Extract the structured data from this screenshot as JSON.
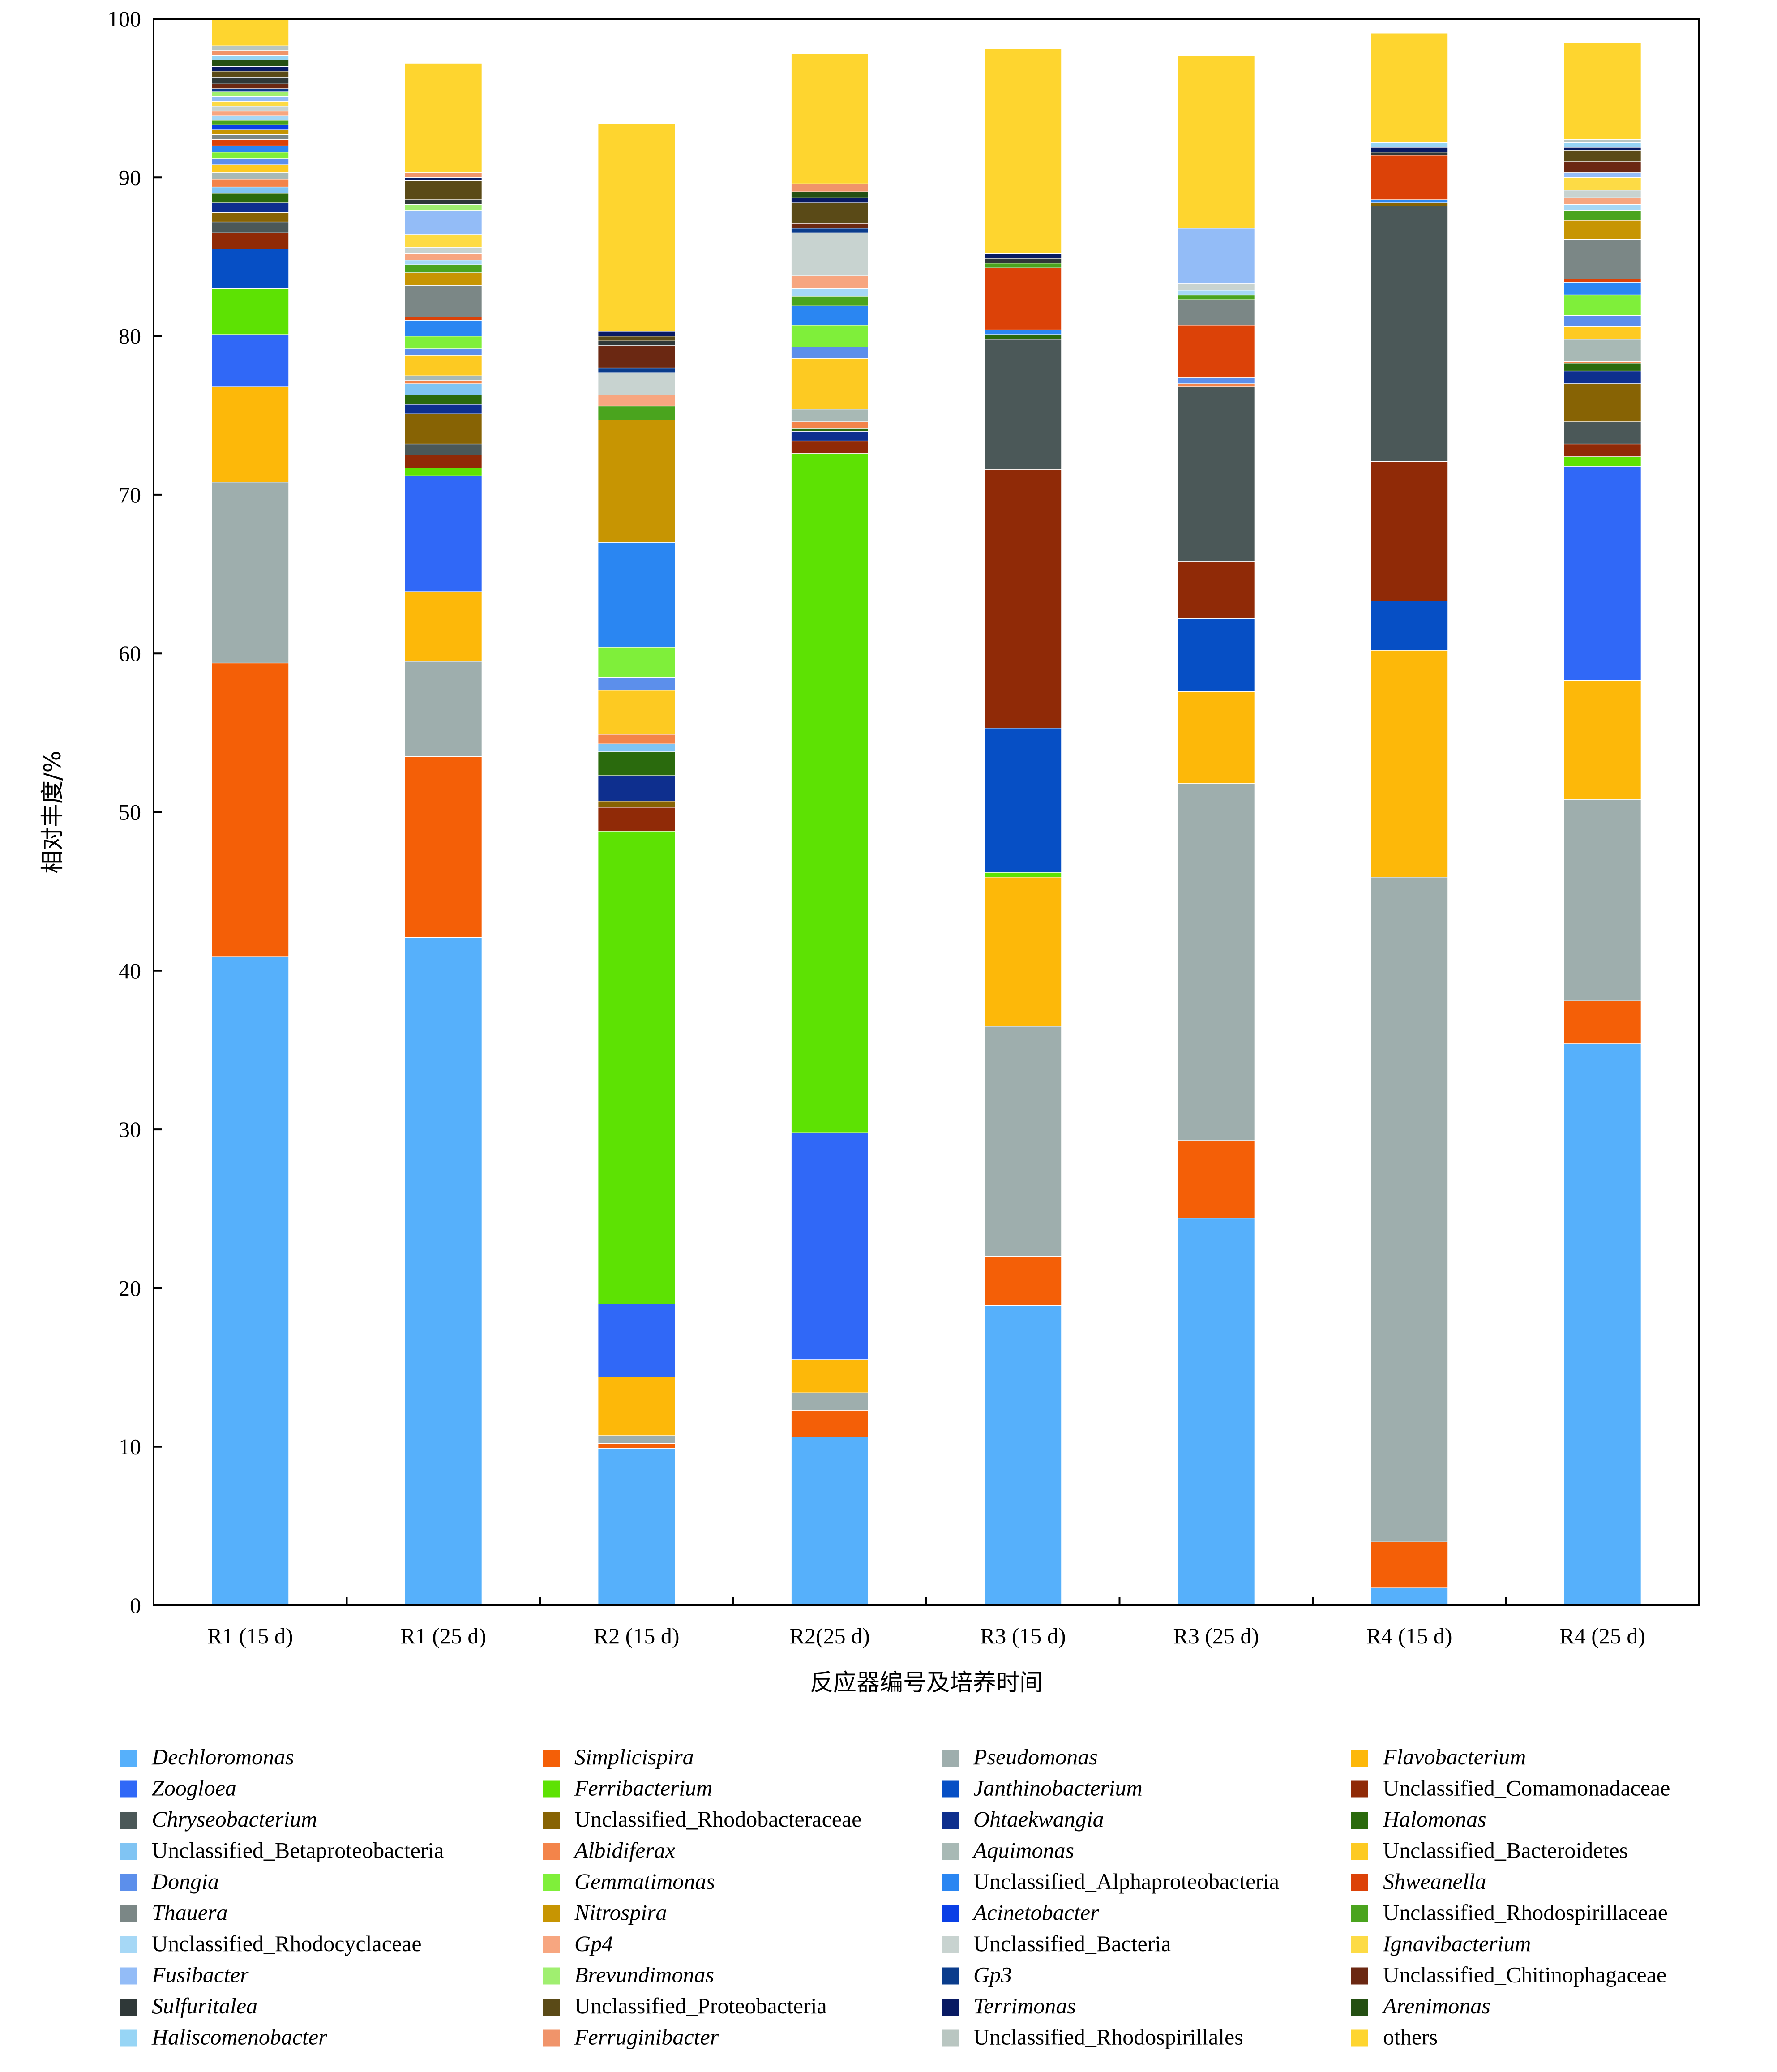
{
  "chart_data": {
    "type": "bar",
    "stacked": true,
    "xlabel": "反应器编号及培养时间",
    "ylabel": "相对丰度/%",
    "ylim": [
      0,
      100
    ],
    "yticks": [
      0,
      10,
      20,
      30,
      40,
      50,
      60,
      70,
      80,
      90,
      100
    ],
    "grid": false,
    "legend_position": "bottom",
    "categories": [
      "R1 (15 d)",
      "R1 (25 d)",
      "R2 (15 d)",
      "R2(25 d)",
      "R3 (15 d)",
      "R3 (25 d)",
      "R4 (15 d)",
      "R4 (25 d)"
    ],
    "series": [
      {
        "name": "Dechloromonas",
        "italic": true,
        "color": "#56B0FB",
        "values": [
          40.9,
          42.1,
          9.9,
          10.6,
          18.9,
          24.4,
          1.1,
          35.4
        ]
      },
      {
        "name": "Simplicispira",
        "italic": true,
        "color": "#F45F07",
        "values": [
          18.5,
          11.4,
          0.3,
          1.7,
          3.1,
          4.9,
          2.9,
          2.7
        ]
      },
      {
        "name": "Pseudomonas",
        "italic": true,
        "color": "#9EAEAD",
        "values": [
          11.4,
          6.0,
          0.5,
          1.1,
          14.5,
          22.5,
          41.9,
          12.7
        ]
      },
      {
        "name": "Flavobacterium",
        "italic": true,
        "color": "#FDB809",
        "values": [
          6.0,
          4.4,
          3.7,
          2.1,
          9.4,
          5.8,
          14.3,
          7.5
        ]
      },
      {
        "name": "Zoogloea",
        "italic": true,
        "color": "#3068F7",
        "values": [
          3.3,
          7.3,
          4.6,
          14.3,
          0.0,
          0.0,
          0.0,
          13.5
        ]
      },
      {
        "name": "Ferribacterium",
        "italic": true,
        "color": "#5DE203",
        "values": [
          2.9,
          0.5,
          29.8,
          42.8,
          0.3,
          0.0,
          0.0,
          0.6
        ]
      },
      {
        "name": "Janthinobacterium",
        "italic": true,
        "color": "#064FC5",
        "values": [
          2.5,
          0.0,
          0.0,
          0.0,
          9.1,
          4.6,
          3.1,
          0.0
        ]
      },
      {
        "name": "Unclassified_Comamonadaceae",
        "italic": false,
        "color": "#902A07",
        "values": [
          1.0,
          0.8,
          1.5,
          0.8,
          16.3,
          3.6,
          8.8,
          0.8
        ]
      },
      {
        "name": "Chryseobacterium",
        "italic": true,
        "color": "#4B5858",
        "values": [
          0.7,
          0.7,
          0.0,
          0.0,
          8.2,
          11.0,
          16.1,
          1.4
        ]
      },
      {
        "name": "Unclassified_Rhodobacteraceae",
        "italic": false,
        "color": "#876304",
        "values": [
          0.6,
          1.9,
          0.4,
          0.0,
          0.0,
          0.0,
          0.2,
          2.4
        ]
      },
      {
        "name": "Ohtaekwangia",
        "italic": true,
        "color": "#0E2F8E",
        "values": [
          0.6,
          0.6,
          1.6,
          0.6,
          0.0,
          0.0,
          0.0,
          0.8
        ]
      },
      {
        "name": "Halomonas",
        "italic": true,
        "color": "#2A6A0D",
        "values": [
          0.6,
          0.6,
          1.5,
          0.2,
          0.3,
          0.0,
          0.0,
          0.5
        ]
      },
      {
        "name": "Unclassified_Betaproteobacteria",
        "italic": false,
        "color": "#80C4F3",
        "values": [
          0.4,
          0.7,
          0.5,
          0.0,
          0.0,
          0.0,
          0.0,
          0.0
        ]
      },
      {
        "name": "Albidiferax",
        "italic": true,
        "color": "#F3844A",
        "values": [
          0.5,
          0.2,
          0.6,
          0.4,
          0.0,
          0.2,
          0.0,
          0.1
        ]
      },
      {
        "name": "Aquimonas",
        "italic": true,
        "color": "#A8B9B5",
        "values": [
          0.4,
          0.3,
          0.0,
          0.8,
          0.0,
          0.0,
          0.0,
          1.4
        ]
      },
      {
        "name": "Unclassified_Bacteroidetes",
        "italic": false,
        "color": "#FDCA22",
        "values": [
          0.5,
          1.3,
          2.8,
          3.2,
          0.0,
          0.0,
          0.0,
          0.8
        ]
      },
      {
        "name": "Dongia",
        "italic": true,
        "color": "#5C8FEB",
        "values": [
          0.4,
          0.4,
          0.8,
          0.7,
          0.0,
          0.4,
          0.0,
          0.7
        ]
      },
      {
        "name": "Gemmatimonas",
        "italic": true,
        "color": "#7FEF3A",
        "values": [
          0.4,
          0.8,
          1.9,
          1.4,
          0.0,
          0.0,
          0.0,
          1.3
        ]
      },
      {
        "name": "Unclassified_Alphaproteobacteria",
        "italic": false,
        "color": "#2A86F2",
        "values": [
          0.4,
          1.0,
          6.6,
          1.2,
          0.3,
          0.0,
          0.2,
          0.8
        ]
      },
      {
        "name": "Shweanella",
        "italic": true,
        "color": "#DC4208",
        "values": [
          0.4,
          0.2,
          0.0,
          0.0,
          3.9,
          3.3,
          2.8,
          0.2
        ]
      },
      {
        "name": "Thauera",
        "italic": true,
        "color": "#7B8786",
        "values": [
          0.3,
          2.0,
          0.0,
          0.0,
          0.0,
          1.6,
          0.0,
          2.5
        ]
      },
      {
        "name": "Nitrospira",
        "italic": true,
        "color": "#C79502",
        "values": [
          0.3,
          0.8,
          7.7,
          0.0,
          0.0,
          0.0,
          0.0,
          1.2
        ]
      },
      {
        "name": "Acinetobacter",
        "italic": true,
        "color": "#0A3FE6",
        "values": [
          0.3,
          0.0,
          0.0,
          0.0,
          0.0,
          0.0,
          0.0,
          0.0
        ]
      },
      {
        "name": "Unclassified_Rhodospirillaceae",
        "italic": false,
        "color": "#4AA41E",
        "values": [
          0.3,
          0.5,
          0.9,
          0.6,
          0.3,
          0.3,
          0.0,
          0.6
        ]
      },
      {
        "name": "Unclassified_Rhodocyclaceae",
        "italic": false,
        "color": "#A6D8F6",
        "values": [
          0.3,
          0.3,
          0.0,
          0.5,
          0.0,
          0.3,
          0.0,
          0.4
        ]
      },
      {
        "name": "Gp4",
        "italic": true,
        "color": "#F7A680",
        "values": [
          0.3,
          0.4,
          0.7,
          0.8,
          0.0,
          0.0,
          0.0,
          0.4
        ]
      },
      {
        "name": "Unclassified_Bacteria",
        "italic": false,
        "color": "#C8D3D0",
        "values": [
          0.3,
          0.4,
          1.4,
          2.7,
          0.0,
          0.4,
          0.0,
          0.5
        ]
      },
      {
        "name": "Ignavibacterium",
        "italic": true,
        "color": "#FDDB45",
        "values": [
          0.3,
          0.8,
          0.0,
          0.0,
          0.0,
          0.0,
          0.0,
          0.8
        ]
      },
      {
        "name": "Fusibacter",
        "italic": true,
        "color": "#93BCF7",
        "values": [
          0.3,
          1.5,
          0.0,
          0.0,
          0.0,
          3.5,
          0.0,
          0.3
        ]
      },
      {
        "name": "Brevundimonas",
        "italic": true,
        "color": "#A0EF70",
        "values": [
          0.3,
          0.4,
          0.0,
          0.0,
          0.0,
          0.0,
          0.0,
          0.0
        ]
      },
      {
        "name": "Gp3",
        "italic": true,
        "color": "#0A3C8C",
        "values": [
          0.2,
          0.0,
          0.3,
          0.3,
          0.0,
          0.0,
          0.0,
          0.0
        ]
      },
      {
        "name": "Unclassified_Chitinophagaceae",
        "italic": false,
        "color": "#6B2812",
        "values": [
          0.3,
          0.0,
          1.4,
          0.3,
          0.0,
          0.0,
          0.0,
          0.7
        ]
      },
      {
        "name": "Sulfuritalea",
        "italic": true,
        "color": "#2F3838",
        "values": [
          0.4,
          0.3,
          0.3,
          0.0,
          0.3,
          0.0,
          0.2,
          0.0
        ]
      },
      {
        "name": "Unclassified_Proteobacteria",
        "italic": false,
        "color": "#5A4A17",
        "values": [
          0.4,
          1.2,
          0.3,
          1.3,
          0.0,
          0.0,
          0.0,
          0.7
        ]
      },
      {
        "name": "Terrimonas",
        "italic": true,
        "color": "#081A63",
        "values": [
          0.3,
          0.2,
          0.3,
          0.3,
          0.3,
          0.0,
          0.3,
          0.2
        ]
      },
      {
        "name": "Arenimonas",
        "italic": true,
        "color": "#244F12",
        "values": [
          0.4,
          0.0,
          0.0,
          0.4,
          0.0,
          0.0,
          0.0,
          0.0
        ]
      },
      {
        "name": "Haliscomenobacter",
        "italic": true,
        "color": "#97D5F5",
        "values": [
          0.3,
          0.0,
          0.0,
          0.0,
          0.0,
          0.0,
          0.3,
          0.3
        ]
      },
      {
        "name": "Ferruginibacter",
        "italic": true,
        "color": "#F0946A",
        "values": [
          0.3,
          0.3,
          0.0,
          0.5,
          0.0,
          0.0,
          0.0,
          0.0
        ]
      },
      {
        "name": "Unclassified_Rhodospirillales",
        "italic": false,
        "color": "#B9C6C1",
        "values": [
          0.3,
          0.0,
          0.0,
          0.0,
          0.0,
          0.0,
          0.0,
          0.2
        ]
      },
      {
        "name": "others",
        "italic": false,
        "color": "#FED52F",
        "values": [
          2.1,
          6.9,
          13.1,
          8.2,
          12.9,
          10.9,
          6.9,
          6.1
        ]
      }
    ]
  }
}
